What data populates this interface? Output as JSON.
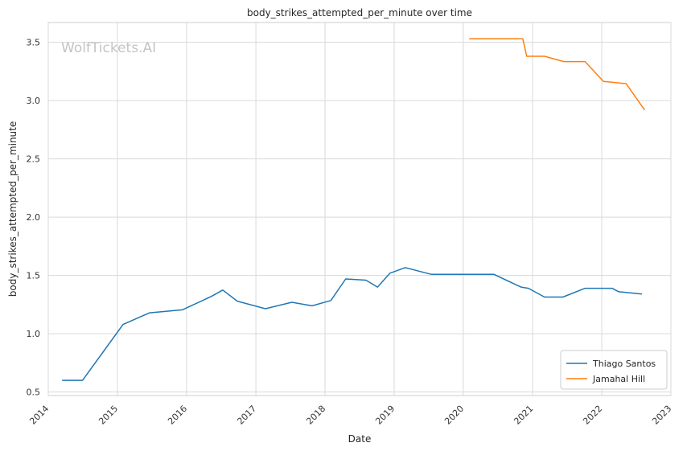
{
  "chart_data": {
    "type": "line",
    "title": "body_strikes_attempted_per_minute over time",
    "xlabel": "Date",
    "ylabel": "body_strikes_attempted_per_minute",
    "watermark": "WolfTickets.AI",
    "xlim": [
      "2014-01-01",
      "2023-01-01"
    ],
    "ylim": [
      0.47,
      3.67
    ],
    "x_ticks": [
      "2014",
      "2015",
      "2016",
      "2017",
      "2018",
      "2019",
      "2020",
      "2021",
      "2022",
      "2023"
    ],
    "y_ticks": [
      "0.5",
      "1.0",
      "1.5",
      "2.0",
      "2.5",
      "3.0",
      "3.5"
    ],
    "grid": true,
    "legend_position": "bottom-right",
    "series": [
      {
        "name": "Thiago Santos",
        "color": "#1f77b4",
        "points": [
          [
            "2014-03-15",
            0.6
          ],
          [
            "2014-07-01",
            0.6
          ],
          [
            "2015-01-31",
            1.08
          ],
          [
            "2015-06-20",
            1.18
          ],
          [
            "2015-12-10",
            1.205
          ],
          [
            "2016-05-10",
            1.32
          ],
          [
            "2016-07-10",
            1.375
          ],
          [
            "2016-09-25",
            1.28
          ],
          [
            "2017-02-20",
            1.215
          ],
          [
            "2017-07-10",
            1.27
          ],
          [
            "2017-10-25",
            1.24
          ],
          [
            "2018-02-01",
            1.285
          ],
          [
            "2018-04-20",
            1.47
          ],
          [
            "2018-08-05",
            1.46
          ],
          [
            "2018-10-05",
            1.4
          ],
          [
            "2018-12-10",
            1.52
          ],
          [
            "2019-02-28",
            1.567
          ],
          [
            "2019-07-15",
            1.51
          ],
          [
            "2020-06-10",
            1.51
          ],
          [
            "2020-11-01",
            1.4
          ],
          [
            "2020-12-10",
            1.39
          ],
          [
            "2021-03-05",
            1.315
          ],
          [
            "2021-06-10",
            1.315
          ],
          [
            "2021-10-05",
            1.39
          ],
          [
            "2022-02-25",
            1.39
          ],
          [
            "2022-04-01",
            1.36
          ],
          [
            "2022-08-01",
            1.34
          ]
        ]
      },
      {
        "name": "Jamahal Hill",
        "color": "#ff7f0e",
        "points": [
          [
            "2020-02-01",
            3.53
          ],
          [
            "2020-11-10",
            3.53
          ],
          [
            "2020-12-01",
            3.38
          ],
          [
            "2021-03-05",
            3.38
          ],
          [
            "2021-06-15",
            3.335
          ],
          [
            "2021-10-05",
            3.335
          ],
          [
            "2022-01-10",
            3.165
          ],
          [
            "2022-05-10",
            3.145
          ],
          [
            "2022-08-15",
            2.92
          ]
        ]
      }
    ]
  }
}
